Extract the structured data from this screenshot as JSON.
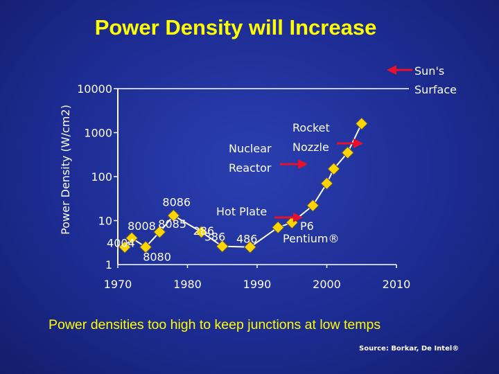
{
  "title": "Power Density will Increase",
  "caption": "Power densities too high to keep junctions at low temps",
  "source": "Source: Borkar, De Intel®",
  "chart_data": {
    "type": "line",
    "title": "Power Density will Increase",
    "xlabel": "",
    "ylabel": "Power Density (W/cm2)",
    "y_scale": "log",
    "xlim": [
      1970,
      2010
    ],
    "ylim": [
      1,
      10000
    ],
    "x_ticks": [
      "1970",
      "1980",
      "1990",
      "2000",
      "2010"
    ],
    "y_ticks": [
      "1",
      "10",
      "100",
      "1000",
      "10000"
    ],
    "grid": false,
    "series": [
      {
        "color": "#ffd400",
        "points": [
          {
            "x": 1971,
            "y": 2.5,
            "label": "4004"
          },
          {
            "x": 1972,
            "y": 4.0,
            "label": "8008"
          },
          {
            "x": 1974,
            "y": 2.5,
            "label": "8080"
          },
          {
            "x": 1976,
            "y": 5.5,
            "label": "8085"
          },
          {
            "x": 1978,
            "y": 13,
            "label": "8086"
          },
          {
            "x": 1982,
            "y": 5.5,
            "label": "286"
          },
          {
            "x": 1985,
            "y": 2.6,
            "label": "386"
          },
          {
            "x": 1989,
            "y": 2.5,
            "label": "486"
          },
          {
            "x": 1993,
            "y": 7,
            "label": ""
          },
          {
            "x": 1995,
            "y": 9,
            "label": ""
          },
          {
            "x": 1998,
            "y": 22,
            "label": ""
          },
          {
            "x": 2000,
            "y": 70,
            "label": ""
          },
          {
            "x": 2001,
            "y": 150,
            "label": ""
          },
          {
            "x": 2003,
            "y": 350,
            "label": ""
          },
          {
            "x": 2005,
            "y": 1600,
            "label": ""
          }
        ]
      }
    ],
    "annotations": [
      {
        "text": "Hot Plate",
        "y": 12
      },
      {
        "text": "P6",
        "y": 8
      },
      {
        "text": "Pentium®",
        "y": 8
      },
      {
        "text": "Nuclear",
        "y": 420
      },
      {
        "text": "Reactor",
        "y": 420
      },
      {
        "text": "Rocket",
        "y": 570
      },
      {
        "text": "Nozzle",
        "y": 570
      },
      {
        "text": "Sun's",
        "y": 9500
      },
      {
        "text": "Surface",
        "y": 9500
      }
    ],
    "arrow_color": "#e8102a"
  }
}
